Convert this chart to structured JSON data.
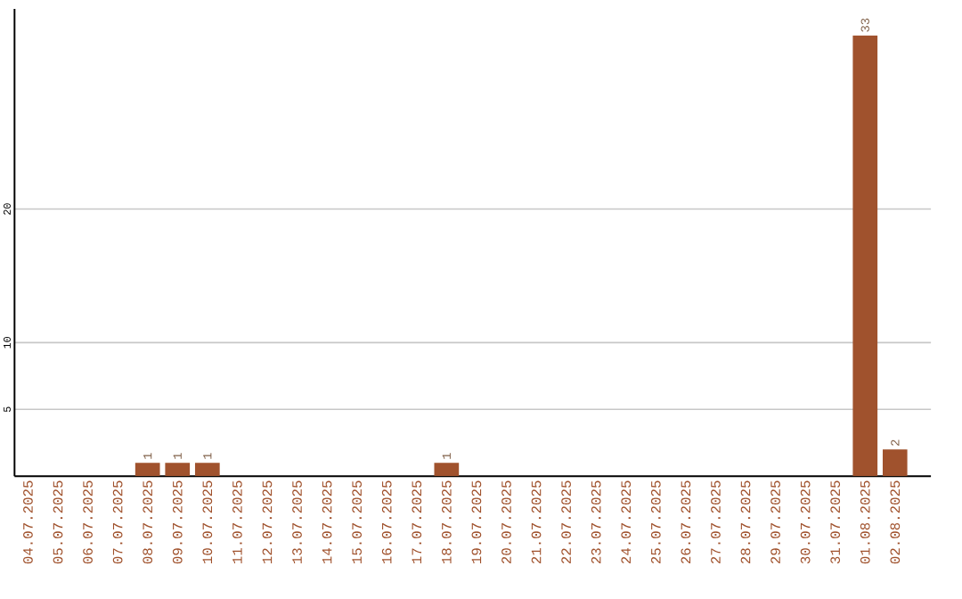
{
  "chart_data": {
    "type": "bar",
    "categories": [
      "04.07.2025",
      "05.07.2025",
      "06.07.2025",
      "07.07.2025",
      "08.07.2025",
      "09.07.2025",
      "10.07.2025",
      "11.07.2025",
      "12.07.2025",
      "13.07.2025",
      "14.07.2025",
      "15.07.2025",
      "16.07.2025",
      "17.07.2025",
      "18.07.2025",
      "19.07.2025",
      "20.07.2025",
      "21.07.2025",
      "22.07.2025",
      "23.07.2025",
      "24.07.2025",
      "25.07.2025",
      "26.07.2025",
      "27.07.2025",
      "28.07.2025",
      "29.07.2025",
      "30.07.2025",
      "31.07.2025",
      "01.08.2025",
      "02.08.2025"
    ],
    "values": [
      0,
      0,
      0,
      0,
      1,
      1,
      1,
      0,
      0,
      0,
      0,
      0,
      0,
      0,
      1,
      0,
      0,
      0,
      0,
      0,
      0,
      0,
      0,
      0,
      0,
      0,
      0,
      0,
      33,
      2
    ],
    "value_labels": [
      null,
      null,
      null,
      null,
      "1",
      "1",
      "1",
      null,
      null,
      null,
      null,
      null,
      null,
      null,
      "1",
      null,
      null,
      null,
      null,
      null,
      null,
      null,
      null,
      null,
      null,
      null,
      null,
      null,
      "33",
      "2"
    ],
    "color": "#a0522d",
    "ylim": [
      0,
      35
    ],
    "yticks": [
      5,
      10,
      20
    ],
    "grid": "y"
  }
}
